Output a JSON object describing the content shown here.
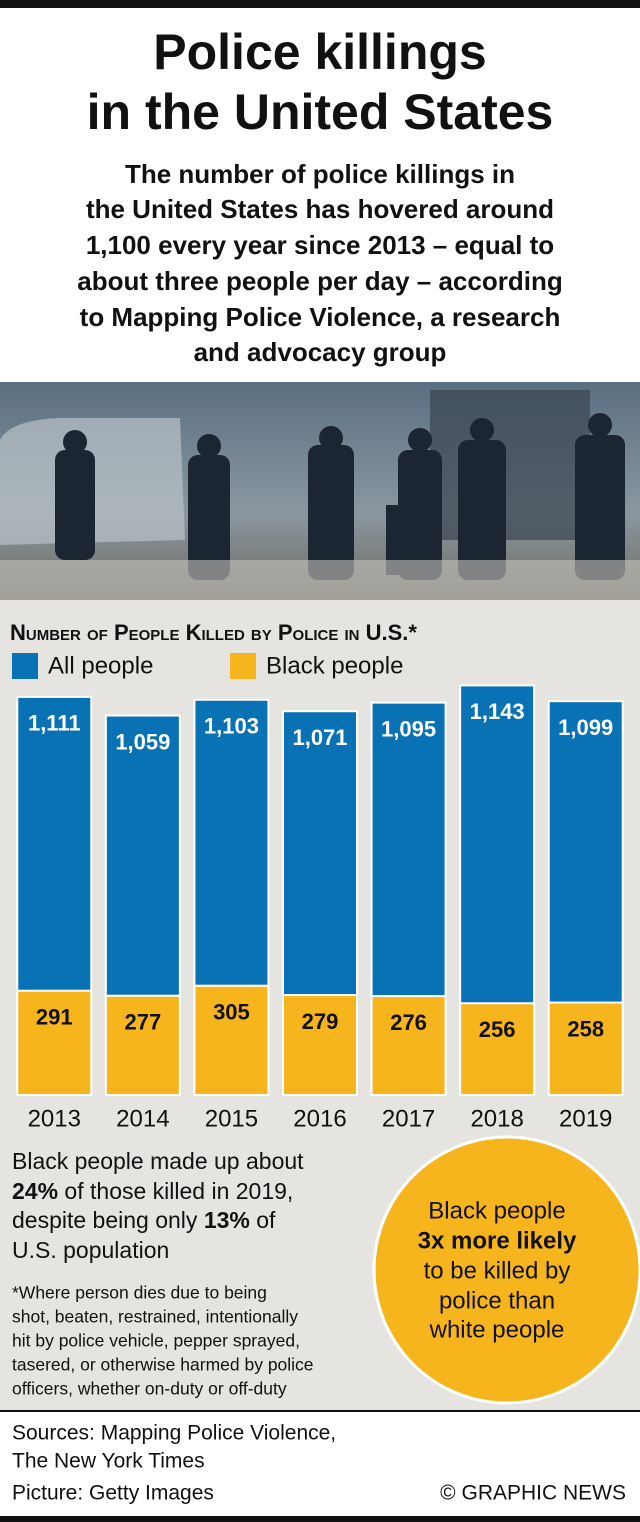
{
  "header": {
    "title": [
      "Police killings",
      "in the United States"
    ],
    "subtitle": [
      "The number of police killings in",
      "the United States has hovered around",
      "1,100 every year since 2013 – equal to",
      "about three people per day – according",
      "to Mapping Police Violence, a research",
      "and advocacy group"
    ]
  },
  "chart_data": {
    "type": "bar",
    "title": "Number of People Killed by Police in U.S.*",
    "categories": [
      "2013",
      "2014",
      "2015",
      "2016",
      "2017",
      "2018",
      "2019"
    ],
    "series": [
      {
        "name": "All people",
        "color": "#0872b4",
        "values": [
          1111,
          1059,
          1103,
          1071,
          1095,
          1143,
          1099
        ],
        "value_labels": [
          "1,111",
          "1,059",
          "1,103",
          "1,071",
          "1,095",
          "1,143",
          "1,099"
        ]
      },
      {
        "name": "Black people",
        "color": "#f7b51d",
        "values": [
          291,
          277,
          305,
          279,
          276,
          256,
          258
        ]
      }
    ],
    "ylim": [
      0,
      1200
    ]
  },
  "note": [
    [
      "Black people made up about"
    ],
    [
      "24%",
      " of those killed in 2019,"
    ],
    [
      "despite being only ",
      "13%",
      " of"
    ],
    [
      "U.S. population"
    ]
  ],
  "footnote": [
    "*Where person dies due to being",
    "shot, beaten, restrained, intentionally",
    "hit by police vehicle, pepper sprayed,",
    "tasered, or otherwise harmed by police",
    "officers, whether on-duty or off-duty"
  ],
  "callout": [
    "Black people",
    "3x more likely",
    "to be killed by",
    "police than",
    "white people"
  ],
  "footer": {
    "sources": [
      "Sources: Mapping Police Violence,",
      "The New York Times"
    ],
    "picture": "Picture: Getty Images",
    "credit": "© GRAPHIC NEWS"
  }
}
